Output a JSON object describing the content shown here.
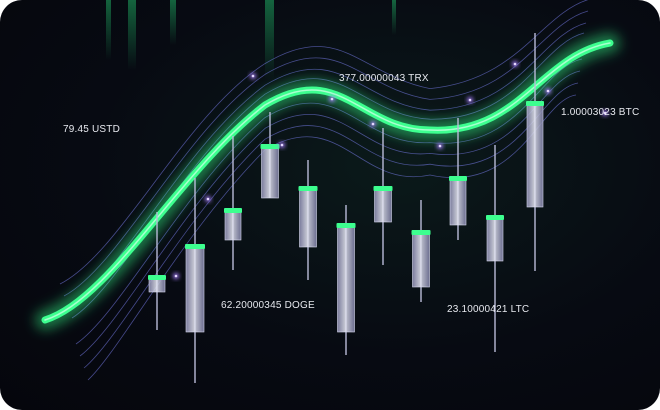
{
  "colors": {
    "neon_green": "#36ff8a",
    "candle_body": "#cfd2e6",
    "thin_lines": "#7a7ff0",
    "background": "#06080f"
  },
  "labels": [
    {
      "key": "usdt",
      "text": "79.45 USTD"
    },
    {
      "key": "trx",
      "text": "377.00000043 TRX"
    },
    {
      "key": "btc",
      "text": "1.00003023 BTC"
    },
    {
      "key": "doge",
      "text": "62.20000345 DOGE"
    },
    {
      "key": "ltc",
      "text": "23.10000421 LTC"
    }
  ]
}
